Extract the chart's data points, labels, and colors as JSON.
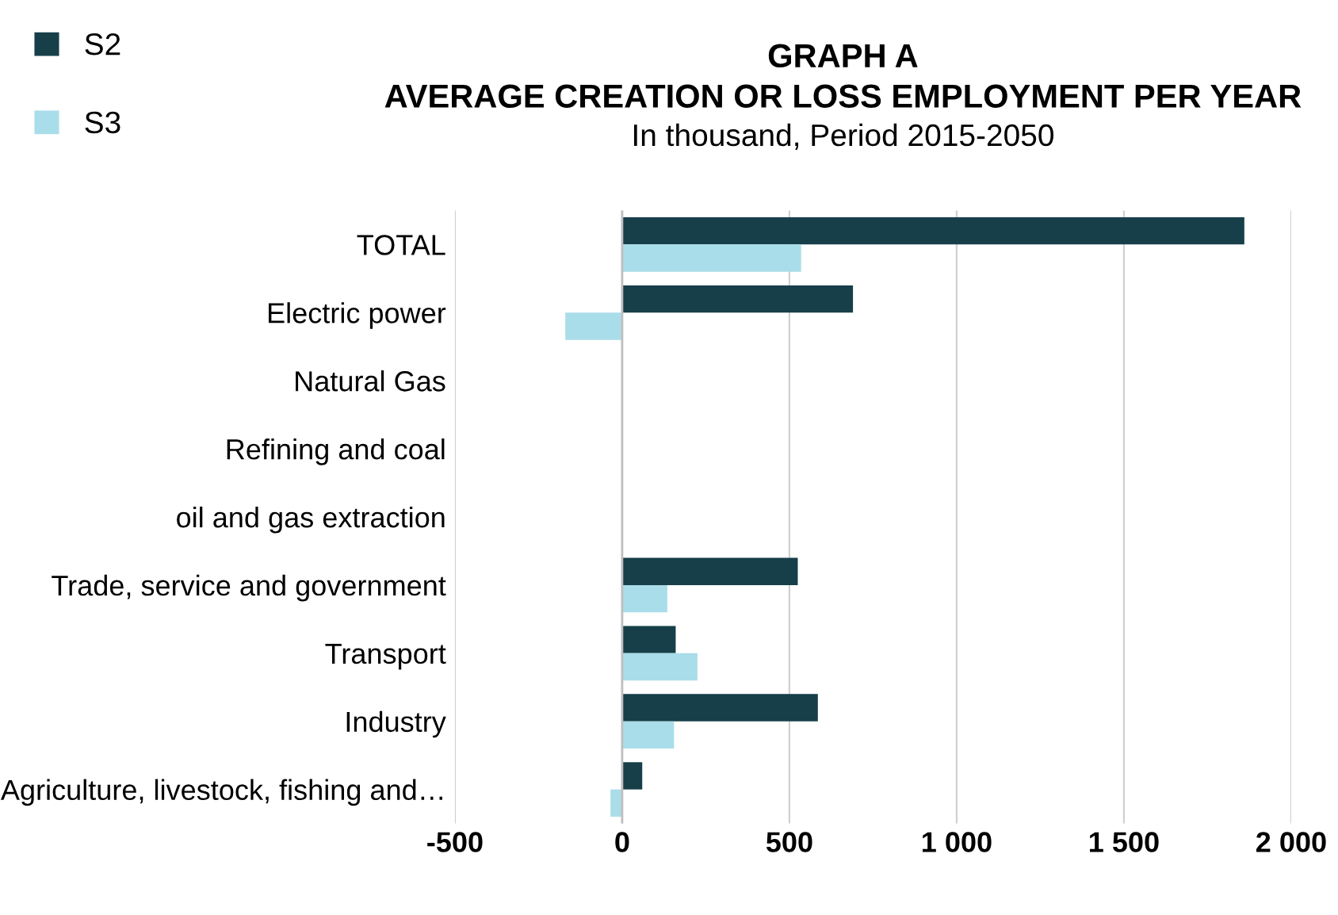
{
  "chart_data": {
    "type": "bar",
    "orientation": "horizontal",
    "title": "GRAPH A\nAVERAGE CREATION OR LOSS EMPLOYMENT PER YEAR",
    "subtitle": "In thousand, Period 2015-2050",
    "categories": [
      "TOTAL",
      "Electric power",
      "Natural Gas",
      "Refining and coal",
      "oil and gas extraction",
      "Trade, service and government",
      "Transport",
      "Industry",
      "Agriculture, livestock, fishing and…"
    ],
    "series": [
      {
        "name": "S2",
        "color": "#173f4a",
        "values": [
          1860,
          690,
          null,
          null,
          null,
          525,
          160,
          585,
          60
        ]
      },
      {
        "name": "S3",
        "color": "#a9dde9",
        "values": [
          535,
          -170,
          0,
          null,
          1,
          135,
          225,
          155,
          -35
        ]
      }
    ],
    "xlim": [
      -500,
      2000
    ],
    "xticks": [
      {
        "value": -500,
        "label": "-500"
      },
      {
        "value": 0,
        "label": "0"
      },
      {
        "value": 500,
        "label": "500"
      },
      {
        "value": 1000,
        "label": "1 000"
      },
      {
        "value": 1500,
        "label": "1 500"
      },
      {
        "value": 2000,
        "label": "2 000"
      }
    ],
    "grid": "x",
    "legend": "top left"
  }
}
